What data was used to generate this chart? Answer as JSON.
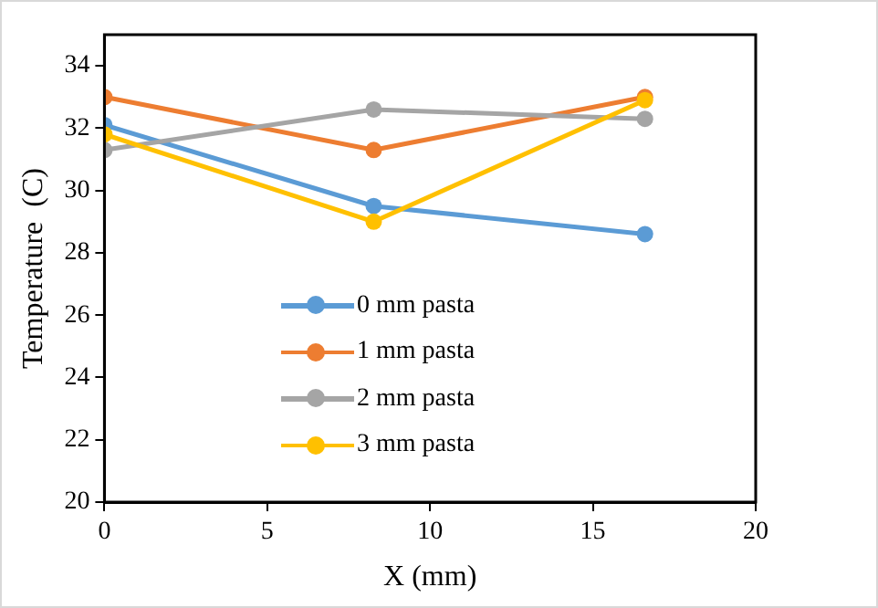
{
  "chart_data": {
    "type": "line",
    "xlabel": "X (mm)",
    "ylabel": "Temperature  (C)",
    "x": [
      0,
      8.27,
      16.6
    ],
    "series": [
      {
        "name": "0 mm pasta",
        "color": "#5b9bd5",
        "values": [
          32.1,
          29.5,
          28.6
        ]
      },
      {
        "name": "1 mm pasta",
        "color": "#ed7d31",
        "values": [
          33.0,
          31.3,
          33.0
        ]
      },
      {
        "name": "2 mm pasta",
        "color": "#a5a5a5",
        "values": [
          31.3,
          32.6,
          32.3
        ]
      },
      {
        "name": "3 mm pasta",
        "color": "#ffc000",
        "values": [
          31.8,
          29.0,
          32.9
        ]
      }
    ],
    "xlim": [
      0,
      20
    ],
    "xticks": [
      0,
      5,
      10,
      15,
      20
    ],
    "ylim": [
      20,
      35
    ],
    "yticks": [
      20,
      22,
      24,
      26,
      28,
      30,
      32,
      34
    ],
    "grid": false,
    "legend": "left",
    "marker": "circle",
    "line_style": "solid"
  }
}
